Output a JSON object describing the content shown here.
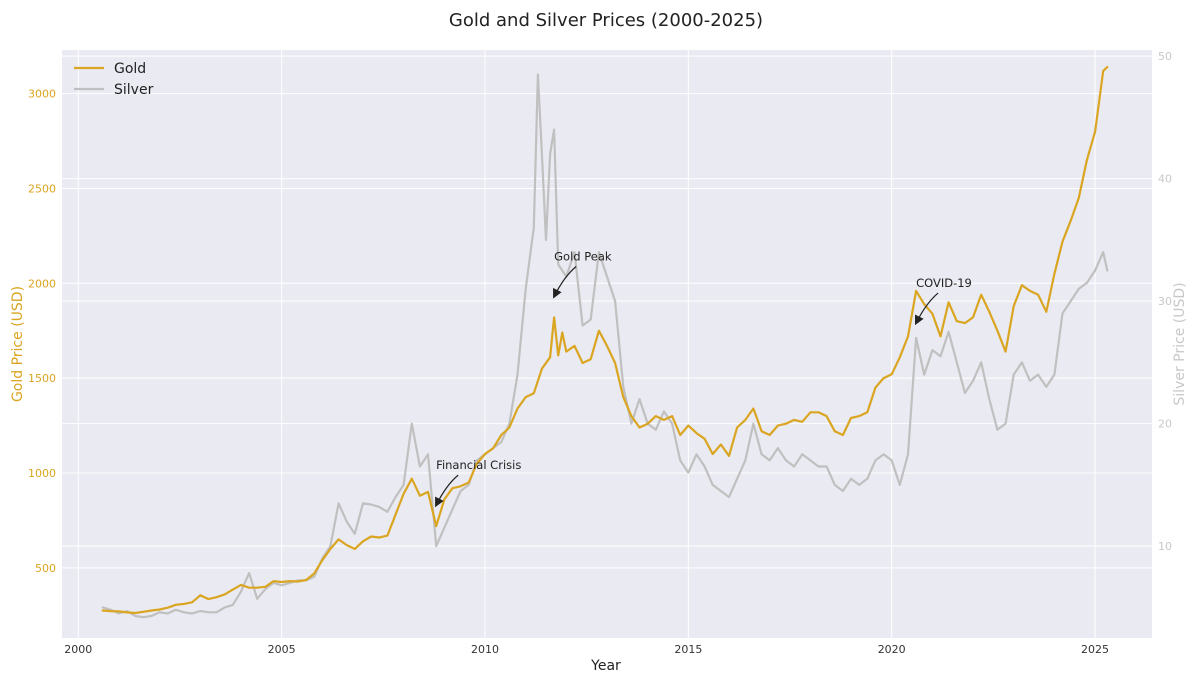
{
  "chart_data": {
    "type": "line",
    "title": "Gold and Silver Prices (2000-2025)",
    "xlabel": "Year",
    "ylabel_left": "Gold Price (USD)",
    "ylabel_right": "Silver Price (USD)",
    "xlim": [
      1999.6,
      2026.4
    ],
    "ylim_left": [
      130,
      3230
    ],
    "ylim_right": [
      2.5,
      50.5
    ],
    "x_ticks": [
      2000,
      2005,
      2010,
      2015,
      2020,
      2025
    ],
    "y_left_ticks": [
      500,
      1000,
      1500,
      2000,
      2500,
      3000
    ],
    "y_right_ticks": [
      10,
      20,
      30,
      40,
      50
    ],
    "grid": true,
    "legend_position": "top-left",
    "colors": {
      "gold": "#DAA520",
      "silver": "#C0C0C0",
      "background": "#EAEAF2"
    },
    "series": [
      {
        "name": "Gold",
        "axis": "left",
        "points": [
          [
            2000.6,
            275
          ],
          [
            2000.8,
            272
          ],
          [
            2001.0,
            270
          ],
          [
            2001.2,
            265
          ],
          [
            2001.4,
            262
          ],
          [
            2001.6,
            268
          ],
          [
            2001.8,
            275
          ],
          [
            2002.0,
            280
          ],
          [
            2002.2,
            290
          ],
          [
            2002.4,
            305
          ],
          [
            2002.6,
            310
          ],
          [
            2002.8,
            318
          ],
          [
            2003.0,
            355
          ],
          [
            2003.2,
            335
          ],
          [
            2003.4,
            345
          ],
          [
            2003.6,
            360
          ],
          [
            2003.8,
            385
          ],
          [
            2004.0,
            410
          ],
          [
            2004.2,
            395
          ],
          [
            2004.4,
            395
          ],
          [
            2004.6,
            400
          ],
          [
            2004.8,
            430
          ],
          [
            2005.0,
            425
          ],
          [
            2005.2,
            430
          ],
          [
            2005.4,
            428
          ],
          [
            2005.6,
            435
          ],
          [
            2005.8,
            470
          ],
          [
            2006.0,
            540
          ],
          [
            2006.2,
            600
          ],
          [
            2006.4,
            650
          ],
          [
            2006.6,
            620
          ],
          [
            2006.8,
            600
          ],
          [
            2007.0,
            640
          ],
          [
            2007.2,
            665
          ],
          [
            2007.4,
            660
          ],
          [
            2007.6,
            670
          ],
          [
            2007.8,
            780
          ],
          [
            2008.0,
            890
          ],
          [
            2008.2,
            970
          ],
          [
            2008.4,
            880
          ],
          [
            2008.6,
            900
          ],
          [
            2008.8,
            720
          ],
          [
            2009.0,
            860
          ],
          [
            2009.2,
            920
          ],
          [
            2009.4,
            930
          ],
          [
            2009.6,
            950
          ],
          [
            2009.8,
            1050
          ],
          [
            2010.0,
            1100
          ],
          [
            2010.2,
            1130
          ],
          [
            2010.4,
            1200
          ],
          [
            2010.6,
            1240
          ],
          [
            2010.8,
            1340
          ],
          [
            2011.0,
            1400
          ],
          [
            2011.2,
            1420
          ],
          [
            2011.4,
            1550
          ],
          [
            2011.6,
            1610
          ],
          [
            2011.7,
            1820
          ],
          [
            2011.8,
            1620
          ],
          [
            2011.9,
            1740
          ],
          [
            2012.0,
            1640
          ],
          [
            2012.2,
            1670
          ],
          [
            2012.4,
            1580
          ],
          [
            2012.6,
            1600
          ],
          [
            2012.8,
            1750
          ],
          [
            2013.0,
            1670
          ],
          [
            2013.2,
            1580
          ],
          [
            2013.4,
            1400
          ],
          [
            2013.6,
            1300
          ],
          [
            2013.8,
            1240
          ],
          [
            2014.0,
            1260
          ],
          [
            2014.2,
            1300
          ],
          [
            2014.4,
            1280
          ],
          [
            2014.6,
            1300
          ],
          [
            2014.8,
            1200
          ],
          [
            2015.0,
            1250
          ],
          [
            2015.2,
            1210
          ],
          [
            2015.4,
            1180
          ],
          [
            2015.6,
            1100
          ],
          [
            2015.8,
            1150
          ],
          [
            2016.0,
            1090
          ],
          [
            2016.2,
            1240
          ],
          [
            2016.4,
            1280
          ],
          [
            2016.6,
            1340
          ],
          [
            2016.8,
            1220
          ],
          [
            2017.0,
            1200
          ],
          [
            2017.2,
            1250
          ],
          [
            2017.4,
            1260
          ],
          [
            2017.6,
            1280
          ],
          [
            2017.8,
            1270
          ],
          [
            2018.0,
            1320
          ],
          [
            2018.2,
            1320
          ],
          [
            2018.4,
            1300
          ],
          [
            2018.6,
            1220
          ],
          [
            2018.8,
            1200
          ],
          [
            2019.0,
            1290
          ],
          [
            2019.2,
            1300
          ],
          [
            2019.4,
            1320
          ],
          [
            2019.6,
            1450
          ],
          [
            2019.8,
            1500
          ],
          [
            2020.0,
            1520
          ],
          [
            2020.2,
            1610
          ],
          [
            2020.4,
            1720
          ],
          [
            2020.6,
            1960
          ],
          [
            2020.8,
            1890
          ],
          [
            2021.0,
            1840
          ],
          [
            2021.2,
            1720
          ],
          [
            2021.4,
            1900
          ],
          [
            2021.6,
            1800
          ],
          [
            2021.8,
            1790
          ],
          [
            2022.0,
            1820
          ],
          [
            2022.2,
            1940
          ],
          [
            2022.4,
            1850
          ],
          [
            2022.6,
            1750
          ],
          [
            2022.8,
            1640
          ],
          [
            2023.0,
            1880
          ],
          [
            2023.2,
            1990
          ],
          [
            2023.4,
            1960
          ],
          [
            2023.6,
            1940
          ],
          [
            2023.8,
            1850
          ],
          [
            2024.0,
            2050
          ],
          [
            2024.2,
            2220
          ],
          [
            2024.4,
            2330
          ],
          [
            2024.6,
            2450
          ],
          [
            2024.8,
            2650
          ],
          [
            2025.0,
            2800
          ],
          [
            2025.2,
            3120
          ],
          [
            2025.3,
            3140
          ]
        ]
      },
      {
        "name": "Silver",
        "axis": "right",
        "points": [
          [
            2000.6,
            5.0
          ],
          [
            2000.8,
            4.8
          ],
          [
            2001.0,
            4.5
          ],
          [
            2001.2,
            4.7
          ],
          [
            2001.4,
            4.3
          ],
          [
            2001.6,
            4.2
          ],
          [
            2001.8,
            4.3
          ],
          [
            2002.0,
            4.6
          ],
          [
            2002.2,
            4.5
          ],
          [
            2002.4,
            4.8
          ],
          [
            2002.6,
            4.6
          ],
          [
            2002.8,
            4.5
          ],
          [
            2003.0,
            4.7
          ],
          [
            2003.2,
            4.6
          ],
          [
            2003.4,
            4.6
          ],
          [
            2003.6,
            5.0
          ],
          [
            2003.8,
            5.2
          ],
          [
            2004.0,
            6.3
          ],
          [
            2004.2,
            7.8
          ],
          [
            2004.4,
            5.7
          ],
          [
            2004.6,
            6.5
          ],
          [
            2004.8,
            7.0
          ],
          [
            2005.0,
            6.8
          ],
          [
            2005.2,
            7.0
          ],
          [
            2005.4,
            7.2
          ],
          [
            2005.6,
            7.2
          ],
          [
            2005.8,
            7.5
          ],
          [
            2006.0,
            9.0
          ],
          [
            2006.2,
            10.0
          ],
          [
            2006.4,
            13.5
          ],
          [
            2006.6,
            12.0
          ],
          [
            2006.8,
            11.0
          ],
          [
            2007.0,
            13.5
          ],
          [
            2007.2,
            13.4
          ],
          [
            2007.4,
            13.2
          ],
          [
            2007.6,
            12.8
          ],
          [
            2007.8,
            14.0
          ],
          [
            2008.0,
            15.0
          ],
          [
            2008.2,
            20.0
          ],
          [
            2008.4,
            16.5
          ],
          [
            2008.6,
            17.5
          ],
          [
            2008.8,
            10.0
          ],
          [
            2009.0,
            11.5
          ],
          [
            2009.2,
            13.0
          ],
          [
            2009.4,
            14.5
          ],
          [
            2009.6,
            15.0
          ],
          [
            2009.8,
            17.0
          ],
          [
            2010.0,
            17.5
          ],
          [
            2010.2,
            18.0
          ],
          [
            2010.4,
            18.5
          ],
          [
            2010.6,
            20.0
          ],
          [
            2010.8,
            24.0
          ],
          [
            2011.0,
            31.0
          ],
          [
            2011.2,
            36.0
          ],
          [
            2011.3,
            48.5
          ],
          [
            2011.4,
            42.0
          ],
          [
            2011.5,
            35.0
          ],
          [
            2011.6,
            42.0
          ],
          [
            2011.7,
            44.0
          ],
          [
            2011.8,
            33.0
          ],
          [
            2012.0,
            32.0
          ],
          [
            2012.2,
            34.0
          ],
          [
            2012.4,
            28.0
          ],
          [
            2012.6,
            28.5
          ],
          [
            2012.8,
            34.0
          ],
          [
            2013.0,
            32.0
          ],
          [
            2013.2,
            30.0
          ],
          [
            2013.4,
            23.0
          ],
          [
            2013.6,
            20.0
          ],
          [
            2013.8,
            22.0
          ],
          [
            2014.0,
            20.0
          ],
          [
            2014.2,
            19.5
          ],
          [
            2014.4,
            21.0
          ],
          [
            2014.6,
            20.0
          ],
          [
            2014.8,
            17.0
          ],
          [
            2015.0,
            16.0
          ],
          [
            2015.2,
            17.5
          ],
          [
            2015.4,
            16.5
          ],
          [
            2015.6,
            15.0
          ],
          [
            2015.8,
            14.5
          ],
          [
            2016.0,
            14.0
          ],
          [
            2016.2,
            15.5
          ],
          [
            2016.4,
            17.0
          ],
          [
            2016.6,
            20.0
          ],
          [
            2016.8,
            17.5
          ],
          [
            2017.0,
            17.0
          ],
          [
            2017.2,
            18.0
          ],
          [
            2017.4,
            17.0
          ],
          [
            2017.6,
            16.5
          ],
          [
            2017.8,
            17.5
          ],
          [
            2018.0,
            17.0
          ],
          [
            2018.2,
            16.5
          ],
          [
            2018.4,
            16.5
          ],
          [
            2018.6,
            15.0
          ],
          [
            2018.8,
            14.5
          ],
          [
            2019.0,
            15.5
          ],
          [
            2019.2,
            15.0
          ],
          [
            2019.4,
            15.5
          ],
          [
            2019.6,
            17.0
          ],
          [
            2019.8,
            17.5
          ],
          [
            2020.0,
            17.0
          ],
          [
            2020.2,
            15.0
          ],
          [
            2020.4,
            17.5
          ],
          [
            2020.6,
            27.0
          ],
          [
            2020.8,
            24.0
          ],
          [
            2021.0,
            26.0
          ],
          [
            2021.2,
            25.5
          ],
          [
            2021.4,
            27.5
          ],
          [
            2021.6,
            25.0
          ],
          [
            2021.8,
            22.5
          ],
          [
            2022.0,
            23.5
          ],
          [
            2022.2,
            25.0
          ],
          [
            2022.4,
            22.0
          ],
          [
            2022.6,
            19.5
          ],
          [
            2022.8,
            20.0
          ],
          [
            2023.0,
            24.0
          ],
          [
            2023.2,
            25.0
          ],
          [
            2023.4,
            23.5
          ],
          [
            2023.6,
            24.0
          ],
          [
            2023.8,
            23.0
          ],
          [
            2024.0,
            24.0
          ],
          [
            2024.2,
            29.0
          ],
          [
            2024.4,
            30.0
          ],
          [
            2024.6,
            31.0
          ],
          [
            2024.8,
            31.5
          ],
          [
            2025.0,
            32.5
          ],
          [
            2025.2,
            34.0
          ],
          [
            2025.3,
            32.5
          ]
        ]
      }
    ],
    "annotations": [
      {
        "text": "Financial Crisis",
        "x": 2008.8,
        "y": 820
      },
      {
        "text": "Gold Peak",
        "x": 2011.7,
        "y": 1920
      },
      {
        "text": "COVID-19",
        "x": 2020.6,
        "y": 1780
      }
    ]
  }
}
